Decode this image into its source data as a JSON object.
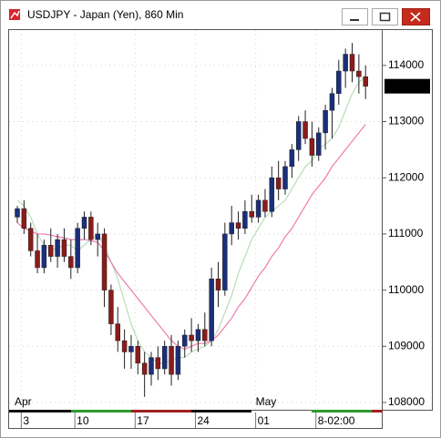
{
  "chart_data": {
    "type": "candlestick",
    "title": "USDJPY - Japan (Yen), 860 Min",
    "categories": [
      null,
      "3",
      null,
      null,
      null,
      null,
      null,
      null,
      null,
      "10",
      null,
      null,
      null,
      null,
      null,
      null,
      null,
      null,
      "17",
      null,
      null,
      null,
      null,
      null,
      null,
      null,
      null,
      "24",
      null,
      null,
      null,
      null,
      null,
      null,
      null,
      null,
      "01",
      null,
      null,
      null,
      null,
      null,
      null,
      null,
      null,
      "8-02:00",
      null,
      null,
      null,
      null,
      null,
      null,
      null
    ],
    "months": [
      "Apr",
      null,
      null,
      null,
      null,
      null,
      null,
      null,
      null,
      null,
      null,
      null,
      null,
      null,
      null,
      null,
      null,
      null,
      null,
      null,
      null,
      null,
      null,
      null,
      null,
      null,
      null,
      null,
      null,
      null,
      null,
      null,
      null,
      null,
      null,
      null,
      "May",
      null,
      null,
      null,
      null,
      null,
      null,
      null,
      null,
      null,
      null,
      null,
      null,
      null,
      null,
      null,
      null
    ],
    "open": [
      111300,
      111450,
      111100,
      110700,
      110400,
      110800,
      110600,
      110900,
      110600,
      110400,
      111100,
      111300,
      110900,
      111000,
      110000,
      109400,
      109100,
      108900,
      109000,
      108700,
      108500,
      108800,
      108600,
      109000,
      108500,
      109000,
      109200,
      109100,
      109300,
      109100,
      110200,
      110000,
      111000,
      111200,
      111100,
      111400,
      111300,
      111600,
      111400,
      112000,
      111800,
      112200,
      112500,
      113000,
      112700,
      112400,
      112800,
      113200,
      113500,
      113900,
      114200,
      113900,
      113800
    ],
    "high": [
      111500,
      111600,
      111200,
      111000,
      110900,
      111100,
      111000,
      111100,
      110900,
      111200,
      111400,
      111400,
      111200,
      111100,
      110100,
      109700,
      109300,
      109200,
      109100,
      108900,
      108900,
      109000,
      109100,
      109200,
      109100,
      109300,
      109500,
      109400,
      109600,
      110400,
      110500,
      111200,
      111500,
      111400,
      111600,
      111700,
      111700,
      111800,
      112200,
      112300,
      112300,
      112600,
      113100,
      113200,
      113000,
      112900,
      113300,
      113600,
      114100,
      114300,
      114400,
      114200,
      114000
    ],
    "low": [
      111200,
      111000,
      110600,
      110300,
      110300,
      110500,
      110400,
      110500,
      110200,
      110300,
      110900,
      110800,
      110600,
      109700,
      109200,
      108900,
      108600,
      108600,
      108500,
      108100,
      108300,
      108400,
      108500,
      108300,
      108400,
      108800,
      108900,
      108900,
      109000,
      109000,
      109700,
      109900,
      110800,
      110900,
      111000,
      111200,
      111200,
      111300,
      111300,
      111600,
      111700,
      112000,
      112300,
      112600,
      112200,
      112300,
      112500,
      112700,
      113300,
      113600,
      113700,
      113500,
      113400
    ],
    "close": [
      111450,
      111100,
      110700,
      110400,
      110800,
      110600,
      110900,
      110600,
      110400,
      111100,
      111300,
      110900,
      111000,
      110000,
      109400,
      109100,
      108900,
      109000,
      108700,
      108500,
      108800,
      108600,
      109000,
      108500,
      109000,
      109200,
      109100,
      109300,
      109100,
      110200,
      110000,
      111000,
      111200,
      111100,
      111400,
      111300,
      111600,
      111400,
      112000,
      111800,
      112200,
      112500,
      113000,
      112700,
      112400,
      112800,
      113200,
      113500,
      113900,
      114200,
      113900,
      113800,
      113630
    ],
    "up_color": "#1b2f7a",
    "down_color": "#8a1c1c",
    "series": [
      {
        "color": "#b9dcb9",
        "values": [
          111600,
          111500,
          111300,
          111000,
          110800,
          110700,
          110750,
          110800,
          110800,
          110700,
          110800,
          110900,
          111000,
          110800,
          110500,
          110200,
          109800,
          109400,
          109100,
          108900,
          108800,
          108700,
          108700,
          108750,
          108800,
          108800,
          108900,
          108950,
          109000,
          109100,
          109300,
          109600,
          109900,
          110300,
          110600,
          110900,
          111100,
          111300,
          111400,
          111500,
          111600,
          111800,
          112000,
          112200,
          112300,
          112500,
          112600,
          112700,
          112900,
          113200,
          113500,
          113700,
          113800
        ]
      },
      {
        "color": "#f07ab0",
        "values": [
          111200,
          111100,
          111050,
          111000,
          111000,
          110980,
          110950,
          110930,
          110900,
          110900,
          110900,
          110880,
          110850,
          110700,
          110500,
          110300,
          110150,
          110000,
          109850,
          109700,
          109550,
          109400,
          109250,
          109100,
          109000,
          108950,
          109000,
          109050,
          109050,
          109100,
          109200,
          109350,
          109500,
          109700,
          109850,
          110050,
          110250,
          110400,
          110600,
          110750,
          110950,
          111100,
          111300,
          111500,
          111700,
          111850,
          112000,
          112200,
          112350,
          112500,
          112650,
          112800,
          112950
        ]
      }
    ],
    "last_price": 113630,
    "ylim": [
      107870,
      114630
    ],
    "yticks": [
      108000,
      109000,
      110000,
      111000,
      112000,
      113000,
      114000
    ],
    "grid": true
  }
}
